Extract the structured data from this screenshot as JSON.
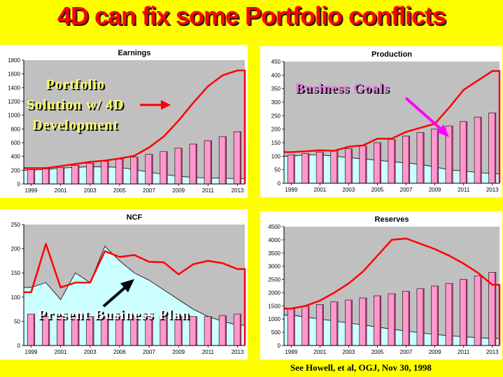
{
  "slide": {
    "title": "4D can fix some Portfolio conflicts",
    "footnote": "See Howell, et al, OGJ, Nov 30, 1998",
    "labels": {
      "portfolio": "Portfolio\nSolution w/ 4D\nDevelopment",
      "goals": "Business Goals",
      "present": "Present Business Plan"
    }
  },
  "colors": {
    "background": "#ffff00",
    "title": "#ff0000",
    "plot_area": "#c0c0c0",
    "area_fill": "#ccffff",
    "bar_fill": "#ff99cc",
    "line": "#ff0000",
    "arrow_red": "#ff0000",
    "arrow_magenta": "#ff00ff",
    "arrow_black": "#000000"
  },
  "chart_data": [
    {
      "id": "earnings",
      "type": "bar",
      "title": "Earnings",
      "ylim": [
        0,
        1800
      ],
      "yticks": [
        0,
        200,
        400,
        600,
        800,
        1000,
        1200,
        1400,
        1600,
        1800
      ],
      "xticks": [
        "1999",
        "2001",
        "2003",
        "2005",
        "2007",
        "2009",
        "2011",
        "2013"
      ],
      "categories": [
        "1999",
        "2000",
        "2001",
        "2002",
        "2003",
        "2004",
        "2005",
        "2006",
        "2007",
        "2008",
        "2009",
        "2010",
        "2011",
        "2012",
        "2013"
      ],
      "series": [
        {
          "kind": "area",
          "values": [
            200,
            210,
            230,
            240,
            250,
            250,
            240,
            210,
            170,
            140,
            110,
            95,
            85,
            85,
            75
          ]
        },
        {
          "kind": "bar",
          "values": [
            210,
            220,
            240,
            270,
            300,
            330,
            360,
            390,
            430,
            470,
            520,
            580,
            630,
            690,
            760
          ]
        },
        {
          "kind": "line",
          "values": [
            230,
            230,
            260,
            290,
            320,
            340,
            370,
            410,
            530,
            690,
            920,
            1180,
            1420,
            1580,
            1650
          ]
        }
      ],
      "grid": false
    },
    {
      "id": "production",
      "type": "bar",
      "title": "Production",
      "ylim": [
        0,
        450
      ],
      "yticks": [
        0,
        50,
        100,
        150,
        200,
        250,
        300,
        350,
        400,
        450
      ],
      "xticks": [
        "1999",
        "2001",
        "2003",
        "2005",
        "2007",
        "2009",
        "2011",
        "2013"
      ],
      "categories": [
        "1999",
        "2000",
        "2001",
        "2002",
        "2003",
        "2004",
        "2005",
        "2006",
        "2007",
        "2008",
        "2009",
        "2010",
        "2011",
        "2012",
        "2013"
      ],
      "series": [
        {
          "kind": "area",
          "values": [
            100,
            105,
            105,
            100,
            95,
            90,
            85,
            80,
            75,
            70,
            60,
            50,
            45,
            40,
            35
          ]
        },
        {
          "kind": "bar",
          "values": [
            105,
            110,
            115,
            120,
            128,
            138,
            150,
            162,
            175,
            188,
            200,
            212,
            228,
            245,
            260
          ]
        },
        {
          "kind": "line",
          "values": [
            115,
            118,
            122,
            120,
            135,
            140,
            165,
            165,
            190,
            205,
            220,
            280,
            345,
            380,
            415
          ]
        }
      ],
      "grid": false
    },
    {
      "id": "ncf",
      "type": "bar",
      "title": "NCF",
      "ylim": [
        0,
        250
      ],
      "yticks": [
        0,
        50,
        100,
        150,
        200,
        250
      ],
      "xticks": [
        "1999",
        "2001",
        "2003",
        "2006",
        "2007",
        "2009",
        "2011",
        "2013"
      ],
      "categories": [
        "1999",
        "2000",
        "2001",
        "2002",
        "2003",
        "2004",
        "2005",
        "2006",
        "2007",
        "2008",
        "2009",
        "2010",
        "2011",
        "2012",
        "2013"
      ],
      "series": [
        {
          "kind": "area",
          "values": [
            120,
            130,
            95,
            150,
            130,
            205,
            175,
            150,
            135,
            115,
            95,
            75,
            60,
            50,
            42
          ]
        },
        {
          "kind": "bar",
          "values": [
            65,
            60,
            60,
            60,
            60,
            60,
            60,
            60,
            60,
            60,
            60,
            60,
            60,
            62,
            65
          ]
        },
        {
          "kind": "line",
          "values": [
            110,
            210,
            120,
            130,
            130,
            195,
            183,
            187,
            173,
            172,
            147,
            168,
            175,
            170,
            158
          ]
        }
      ],
      "grid": false
    },
    {
      "id": "reserves",
      "type": "bar",
      "title": "Reserves",
      "ylim": [
        0,
        4500
      ],
      "yticks": [
        0,
        500,
        1000,
        1500,
        2000,
        2500,
        3000,
        3500,
        4000,
        4500
      ],
      "xticks": [
        "1999",
        "2001",
        "2003",
        "2005",
        "2007",
        "2009",
        "2011",
        "2013"
      ],
      "categories": [
        "1999",
        "2000",
        "2001",
        "2002",
        "2003",
        "2004",
        "2005",
        "2006",
        "2007",
        "2008",
        "2009",
        "2010",
        "2011",
        "2012",
        "2013"
      ],
      "series": [
        {
          "kind": "area",
          "values": [
            1150,
            1080,
            1000,
            930,
            850,
            780,
            700,
            620,
            550,
            480,
            420,
            370,
            330,
            300,
            270
          ]
        },
        {
          "kind": "bar",
          "values": [
            1400,
            1480,
            1550,
            1650,
            1720,
            1800,
            1880,
            1960,
            2050,
            2150,
            2250,
            2350,
            2500,
            2640,
            2770
          ]
        },
        {
          "kind": "line",
          "values": [
            1400,
            1500,
            1700,
            2000,
            2350,
            2800,
            3400,
            4000,
            4050,
            3850,
            3650,
            3400,
            3100,
            2750,
            2300
          ]
        }
      ],
      "grid": false
    }
  ]
}
